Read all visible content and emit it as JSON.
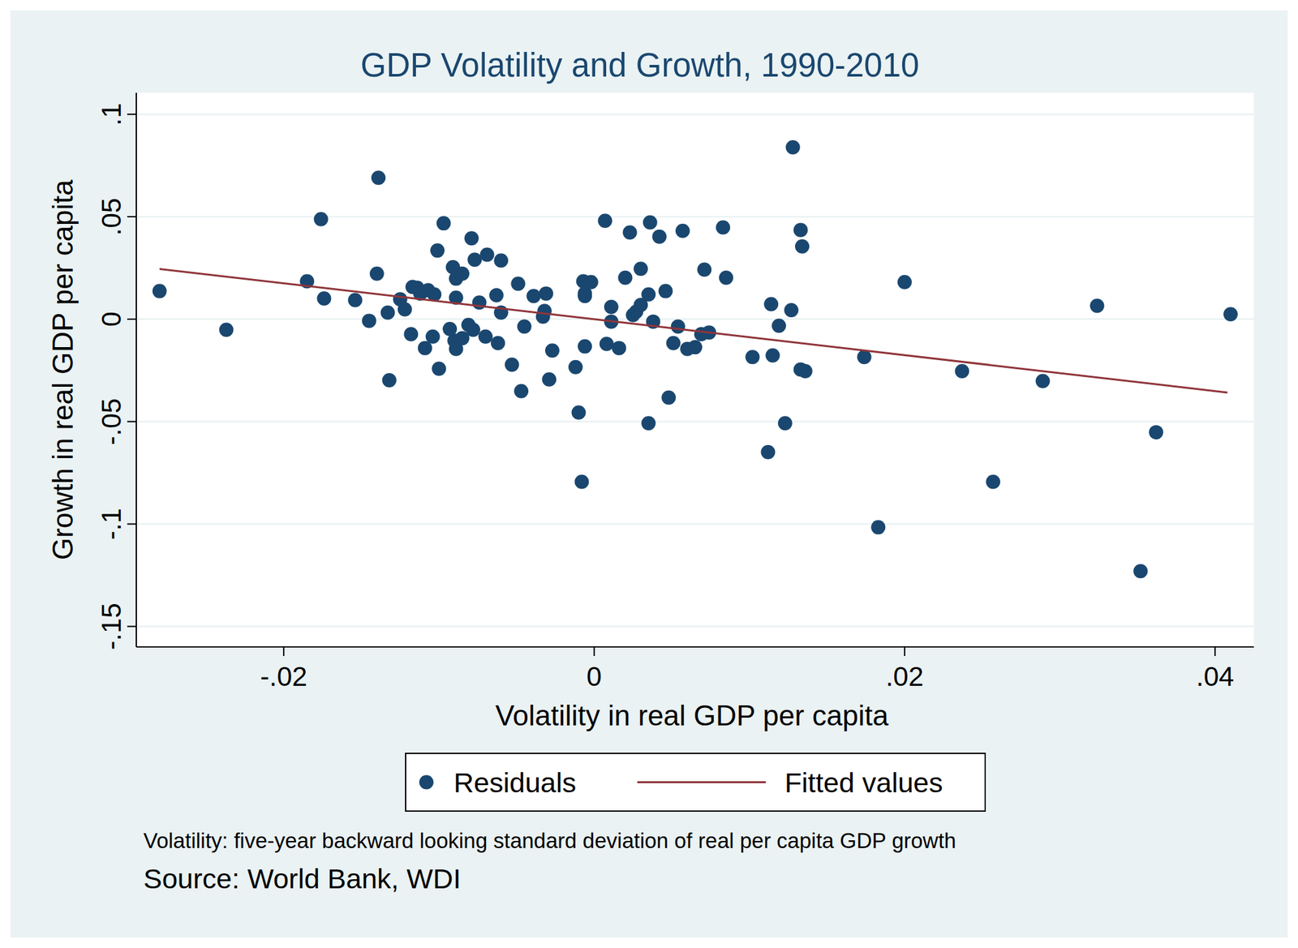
{
  "chart_data": {
    "type": "scatter",
    "title": "GDP Volatility and Growth, 1990-2010",
    "x_label": "Volatility in real GDP per capita",
    "y_label": "Growth in real GDP per capita",
    "notes": [
      "Volatility: five-year backward looking standard deviation of real per capita GDP growth",
      "Source: World Bank, WDI"
    ],
    "xlim": [
      -0.0295,
      0.0425
    ],
    "ylim": [
      -0.16,
      0.1105
    ],
    "xticks": [
      {
        "value": -0.02,
        "label": "-.02"
      },
      0,
      {
        "value": 0.02,
        "label": ".02"
      },
      {
        "value": 0.04,
        "label": ".04"
      }
    ],
    "yticks": [
      {
        "value": -0.15,
        "label": "-.15"
      },
      {
        "value": -0.1,
        "label": "-.1"
      },
      {
        "value": -0.05,
        "label": "-.05"
      },
      0,
      {
        "value": 0.05,
        "label": ".05"
      },
      {
        "value": 0.1,
        "label": ".1"
      }
    ],
    "grid": true,
    "legend": "bottom",
    "series": [
      {
        "name": "Residuals",
        "type": "scatter",
        "color": "#1a476f",
        "marker": "circle",
        "x": [
          -0.028,
          -0.0237,
          -0.0185,
          -0.0176,
          -0.0174,
          -0.0154,
          -0.0145,
          -0.014,
          -0.0139,
          -0.0133,
          -0.0132,
          -0.0125,
          -0.0122,
          -0.0118,
          -0.0117,
          -0.0114,
          -0.0112,
          -0.0109,
          -0.0107,
          -0.0104,
          -0.0103,
          -0.0101,
          -0.01,
          -0.0097,
          -0.0093,
          -0.0091,
          -0.009,
          -0.0089,
          -0.0089,
          -0.0089,
          -0.0085,
          -0.0085,
          -0.0081,
          -0.0079,
          -0.0077,
          -0.0078,
          -0.0074,
          -0.007,
          -0.0069,
          -0.0063,
          -0.0062,
          -0.006,
          -0.006,
          -0.0053,
          -0.0049,
          -0.0047,
          -0.0045,
          -0.0039,
          -0.0031,
          -0.0033,
          -0.0032,
          -0.0029,
          -0.0027,
          -0.0012,
          -0.001,
          -0.0008,
          -0.0007,
          -0.0006,
          -0.0006,
          -0.0006,
          -0.0002,
          0.0007,
          0.0008,
          0.0011,
          0.0011,
          0.0016,
          0.002,
          0.0023,
          0.0025,
          0.0027,
          0.003,
          0.003,
          0.0036,
          0.0035,
          0.0035,
          0.0038,
          0.0042,
          0.0046,
          0.0048,
          0.0051,
          0.0054,
          0.0057,
          0.006,
          0.0065,
          0.0069,
          0.0071,
          0.0074,
          0.0083,
          0.0085,
          0.0102,
          0.0112,
          0.0114,
          0.0115,
          0.0119,
          0.0123,
          0.0127,
          0.0128,
          0.0133,
          0.0134,
          0.0133,
          0.0136,
          0.0174,
          0.0183,
          0.02,
          0.0237,
          0.0257,
          0.0289,
          0.0324,
          0.0352,
          0.0362,
          0.041
        ],
        "values": [
          0.0137,
          -0.0052,
          0.0185,
          0.0488,
          0.0101,
          0.0093,
          -0.0008,
          0.0222,
          0.069,
          0.0032,
          -0.0298,
          0.0097,
          0.0048,
          -0.0073,
          0.0157,
          0.0153,
          0.0125,
          -0.0141,
          0.0141,
          -0.0085,
          0.0121,
          0.0335,
          -0.0242,
          0.0468,
          -0.0048,
          0.0254,
          -0.0105,
          0.0198,
          0.0105,
          -0.0145,
          0.0222,
          -0.0093,
          -0.0028,
          0.0395,
          0.029,
          -0.0052,
          0.0081,
          -0.0085,
          0.0315,
          0.0117,
          -0.0117,
          0.0286,
          0.0032,
          -0.0222,
          0.0173,
          -0.0351,
          -0.0036,
          0.0113,
          0.0125,
          0.0012,
          0.004,
          -0.0294,
          -0.0153,
          -0.0234,
          -0.0456,
          -0.0794,
          0.0185,
          0.0125,
          0.0113,
          -0.0133,
          0.0181,
          0.048,
          -0.0121,
          0.006,
          -0.0012,
          -0.0141,
          0.0202,
          0.0423,
          0.002,
          0.0036,
          0.0246,
          0.0069,
          0.0472,
          -0.0508,
          0.0121,
          -0.0012,
          0.0403,
          0.0137,
          -0.0383,
          -0.0117,
          -0.0036,
          0.0431,
          -0.0145,
          -0.0137,
          -0.0073,
          0.0242,
          -0.0065,
          0.0448,
          0.0202,
          -0.0185,
          -0.0649,
          0.0073,
          -0.0177,
          -0.0032,
          -0.0508,
          0.0044,
          0.0839,
          0.0435,
          0.0355,
          -0.0246,
          -0.0254,
          -0.0185,
          -0.1016,
          0.0181,
          -0.0254,
          -0.0794,
          -0.0302,
          0.0065,
          -0.123,
          -0.0552,
          0.0024
        ]
      },
      {
        "name": "Fitted values",
        "type": "line",
        "color": "#90353b",
        "line_style": "solid",
        "x": [
          -0.028,
          0.0408
        ],
        "values": [
          0.0245,
          -0.0358
        ]
      }
    ]
  }
}
